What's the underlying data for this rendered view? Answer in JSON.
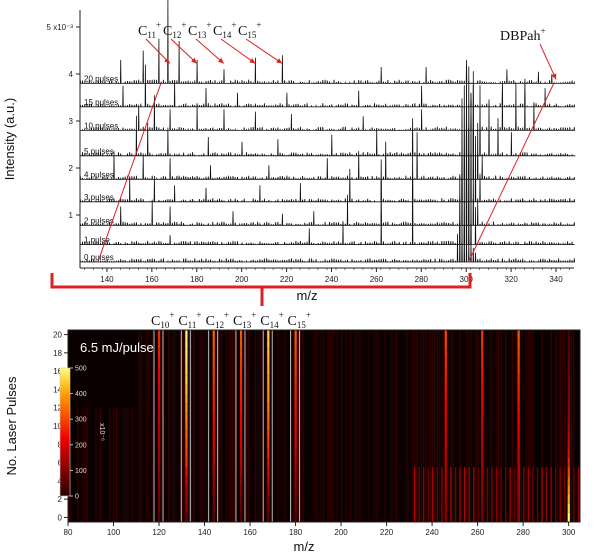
{
  "chart_data": [
    {
      "type": "line",
      "ylabel": "Intensity (a.u.)",
      "xlabel": "m/z",
      "xlim": [
        128,
        348
      ],
      "x_ticks": [
        140,
        160,
        180,
        200,
        220,
        240,
        260,
        280,
        300,
        320,
        340
      ],
      "y_ticks": [
        {
          "label": "1",
          "value": 1
        },
        {
          "label": "2",
          "value": 2
        },
        {
          "label": "3",
          "value": 3
        },
        {
          "label": "4",
          "value": 4
        },
        {
          "label": "5 x10⁻³",
          "value": 5
        }
      ],
      "series": [
        {
          "name": "0 pulses",
          "offset": 0.0,
          "peaks": [
            [
              296,
              0.6
            ],
            [
              297,
              0.9
            ],
            [
              298,
              1.0
            ],
            [
              299,
              0.8
            ],
            [
              300,
              0.7
            ],
            [
              301,
              0.5
            ],
            [
              302,
              0.4
            ],
            [
              303,
              0.3
            ],
            [
              304,
              0.2
            ]
          ]
        },
        {
          "name": "1 pulse",
          "offset": 0.37,
          "peaks": [
            [
              168,
              0.2
            ],
            [
              230,
              0.35
            ],
            [
              245,
              0.5
            ],
            [
              262,
              0.7
            ],
            [
              276,
              0.8
            ],
            [
              297,
              1.5
            ],
            [
              299,
              1.9
            ],
            [
              300,
              2.1
            ],
            [
              301,
              1.6
            ],
            [
              302,
              1.2
            ],
            [
              304,
              0.8
            ]
          ]
        },
        {
          "name": "2 pulses",
          "offset": 0.78,
          "peaks": [
            [
              146,
              0.4
            ],
            [
              160,
              0.55
            ],
            [
              168,
              0.4
            ],
            [
              196,
              0.3
            ],
            [
              218,
              0.25
            ],
            [
              232,
              0.3
            ],
            [
              247,
              0.65
            ],
            [
              262,
              0.95
            ],
            [
              276,
              1.1
            ],
            [
              298,
              2.2
            ],
            [
              300,
              2.6
            ],
            [
              301,
              2.0
            ],
            [
              303,
              1.2
            ],
            [
              305,
              0.5
            ]
          ]
        },
        {
          "name": "3 pulses",
          "offset": 1.28,
          "peaks": [
            [
              150,
              0.5
            ],
            [
              161,
              0.55
            ],
            [
              170,
              0.35
            ],
            [
              184,
              0.3
            ],
            [
              208,
              0.35
            ],
            [
              226,
              0.4
            ],
            [
              248,
              0.7
            ],
            [
              262,
              0.9
            ],
            [
              276,
              1.0
            ],
            [
              298,
              2.2
            ],
            [
              300,
              2.7
            ],
            [
              302,
              2.3
            ],
            [
              304,
              1.4
            ],
            [
              306,
              0.6
            ]
          ]
        },
        {
          "name": "4 pulses",
          "offset": 1.76,
          "peaks": [
            [
              143,
              0.6
            ],
            [
              156,
              0.55
            ],
            [
              168,
              0.45
            ],
            [
              186,
              0.3
            ],
            [
              212,
              0.3
            ],
            [
              238,
              0.45
            ],
            [
              252,
              0.6
            ],
            [
              264,
              0.8
            ],
            [
              278,
              1.0
            ],
            [
              299,
              2.0
            ],
            [
              301,
              2.4
            ],
            [
              303,
              2.0
            ],
            [
              305,
              1.2
            ],
            [
              307,
              0.5
            ]
          ]
        },
        {
          "name": "5 pulses",
          "offset": 2.26,
          "peaks": [
            [
              153,
              0.85
            ],
            [
              158,
              0.7
            ],
            [
              167,
              0.6
            ],
            [
              185,
              0.4
            ],
            [
              200,
              0.3
            ],
            [
              216,
              0.35
            ],
            [
              240,
              0.45
            ],
            [
              260,
              0.55
            ],
            [
              276,
              0.8
            ],
            [
              300,
              1.5
            ],
            [
              303,
              1.8
            ],
            [
              306,
              1.5
            ],
            [
              310,
              1.2
            ],
            [
              314,
              0.8
            ],
            [
              320,
              0.5
            ]
          ]
        },
        {
          "name": "10 pulses",
          "offset": 2.8,
          "peaks": [
            [
              154,
              0.55
            ],
            [
              161,
              0.75
            ],
            [
              168,
              0.45
            ],
            [
              180,
              0.55
            ],
            [
              192,
              0.45
            ],
            [
              206,
              0.4
            ],
            [
              222,
              0.35
            ],
            [
              254,
              0.3
            ],
            [
              280,
              0.45
            ],
            [
              302,
              0.6
            ],
            [
              316,
              0.9
            ],
            [
              322,
              1.0
            ],
            [
              326,
              0.85
            ],
            [
              330,
              0.6
            ]
          ]
        },
        {
          "name": "15 pulses",
          "offset": 3.3,
          "peaks": [
            [
              147,
              0.45
            ],
            [
              157,
              0.9
            ],
            [
              170,
              0.55
            ],
            [
              184,
              0.4
            ],
            [
              198,
              0.3
            ],
            [
              220,
              0.3
            ],
            [
              252,
              0.35
            ],
            [
              280,
              0.45
            ],
            [
              302,
              0.3
            ],
            [
              316,
              0.55
            ],
            [
              326,
              0.6
            ],
            [
              335,
              0.4
            ]
          ]
        },
        {
          "name": "20 pulses",
          "offset": 3.8,
          "peaks": [
            [
              146,
              0.5
            ],
            [
              156,
              0.7
            ],
            [
              163,
              0.95
            ],
            [
              167,
              1.8
            ],
            [
              172,
              0.9
            ],
            [
              180,
              0.5
            ],
            [
              192,
              0.3
            ],
            [
              206,
              0.55
            ],
            [
              218,
              0.6
            ],
            [
              262,
              0.35
            ],
            [
              282,
              0.35
            ],
            [
              300,
              0.5
            ],
            [
              318,
              0.3
            ],
            [
              332,
              0.25
            ],
            [
              338,
              0.2
            ]
          ]
        }
      ],
      "annotations": [
        {
          "text": "C",
          "sub": "11",
          "sup": "+",
          "target_mz": 168
        },
        {
          "text": "C",
          "sub": "12",
          "sup": "+",
          "target_mz": 180
        },
        {
          "text": "C",
          "sub": "13",
          "sup": "+",
          "target_mz": 192
        },
        {
          "text": "C",
          "sub": "14",
          "sup": "+",
          "target_mz": 206
        },
        {
          "text": "C",
          "sub": "15",
          "sup": "+",
          "target_mz": 218
        },
        {
          "text": "DBPah",
          "sup": "+",
          "target_mz": 340
        }
      ]
    },
    {
      "type": "heatmap",
      "title": "6.5 mJ/pulse",
      "xlabel": "m/z",
      "ylabel": "No. Laser Pulses",
      "xlim": [
        80,
        305
      ],
      "ylim": [
        -0.5,
        20.5
      ],
      "x_ticks": [
        80,
        100,
        120,
        140,
        160,
        180,
        200,
        220,
        240,
        260,
        280,
        300
      ],
      "y_ticks": [
        0,
        2,
        4,
        6,
        8,
        10,
        12,
        14,
        16,
        18,
        20
      ],
      "colorbar": {
        "ticks": [
          0,
          100,
          200,
          300,
          400,
          500
        ],
        "label": "x10⁻⁶"
      },
      "carbon_markers": [
        {
          "label": "C",
          "sub": "10",
          "sup": "+",
          "mz": 120
        },
        {
          "label": "C",
          "sub": "11",
          "sup": "+",
          "mz": 132
        },
        {
          "label": "C",
          "sub": "12",
          "sup": "+",
          "mz": 144
        },
        {
          "label": "C",
          "sub": "13",
          "sup": "+",
          "mz": 156
        },
        {
          "label": "C",
          "sub": "14",
          "sup": "+",
          "mz": 168
        },
        {
          "label": "C",
          "sub": "15",
          "sup": "+",
          "mz": 180
        }
      ],
      "columns": [
        {
          "mz": 120,
          "intensity": [
            60,
            80,
            90,
            100,
            110,
            120,
            130,
            140,
            150,
            160,
            170,
            180,
            190,
            200,
            210,
            220,
            230,
            240,
            250,
            260,
            270
          ]
        },
        {
          "mz": 132,
          "intensity": [
            80,
            110,
            140,
            160,
            200,
            240,
            280,
            300,
            320,
            340,
            360,
            380,
            400,
            420,
            440,
            460,
            470,
            480,
            490,
            495,
            500
          ]
        },
        {
          "mz": 144,
          "intensity": [
            60,
            80,
            100,
            120,
            140,
            160,
            180,
            200,
            210,
            220,
            230,
            240,
            250,
            260,
            270,
            280,
            290,
            300,
            310,
            320,
            330
          ]
        },
        {
          "mz": 156,
          "intensity": [
            50,
            70,
            90,
            110,
            130,
            150,
            170,
            190,
            200,
            210,
            220,
            230,
            240,
            250,
            260,
            270,
            280,
            290,
            300,
            310,
            320
          ]
        },
        {
          "mz": 168,
          "intensity": [
            70,
            90,
            120,
            150,
            180,
            210,
            240,
            270,
            290,
            310,
            330,
            350,
            370,
            390,
            400,
            410,
            420,
            430,
            440,
            450,
            460
          ]
        },
        {
          "mz": 180,
          "intensity": [
            50,
            60,
            80,
            100,
            120,
            140,
            160,
            180,
            200,
            210,
            220,
            230,
            240,
            250,
            260,
            270,
            280,
            290,
            300,
            310,
            320
          ]
        },
        {
          "mz": 246,
          "intensity": [
            100,
            110,
            120,
            130,
            140,
            150,
            160,
            170,
            180,
            190,
            200,
            210,
            220,
            230,
            240,
            250,
            260,
            270,
            280,
            290,
            300
          ]
        },
        {
          "mz": 262,
          "intensity": [
            90,
            100,
            110,
            120,
            130,
            140,
            150,
            160,
            170,
            180,
            190,
            200,
            210,
            220,
            230,
            240,
            250,
            260,
            270,
            280,
            290
          ]
        },
        {
          "mz": 278,
          "intensity": [
            120,
            130,
            140,
            150,
            160,
            170,
            180,
            190,
            200,
            210,
            220,
            230,
            240,
            250,
            260,
            270,
            280,
            290,
            300,
            310,
            320
          ]
        },
        {
          "mz": 300,
          "intensity": [
            500,
            460,
            420,
            380,
            340,
            300,
            260,
            230,
            200,
            180,
            160,
            140,
            130,
            120,
            110,
            100,
            90,
            80,
            70,
            60,
            50
          ]
        }
      ]
    }
  ]
}
